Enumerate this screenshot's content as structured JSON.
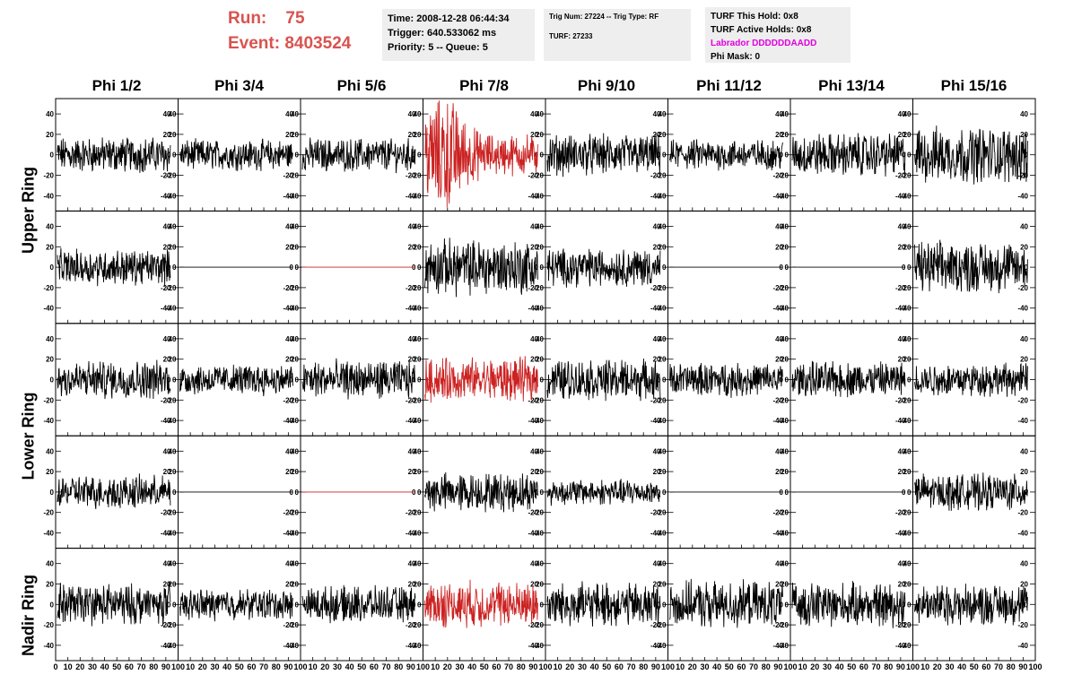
{
  "header": {
    "run_label": "Run:",
    "run_value": "75",
    "event_label": "Event:",
    "event_value": "8403524",
    "time_box": {
      "time": "Time: 2008-12-28 06:44:34",
      "trigger": "Trigger: 640.533062 ms",
      "priority": "Priority: 5 -- Queue: 5"
    },
    "trig_box": {
      "trig": "Trig Num: 27224 -- Trig Type: RF",
      "turf": "TURF: 27233"
    },
    "turf_box": {
      "this_hold": "TURF This Hold: 0x8",
      "active_holds": "TURF Active Holds: 0x8",
      "labrador": "Labrador DDDDDDAADD",
      "phi_mask": "Phi Mask: 0"
    }
  },
  "phi_headers": [
    "Phi 1/2",
    "Phi 3/4",
    "Phi 5/6",
    "Phi 7/8",
    "Phi 9/10",
    "Phi 11/12",
    "Phi 13/14",
    "Phi 15/16"
  ],
  "ring_labels": [
    "Upper Ring",
    "Lower Ring",
    "Nadir Ring"
  ],
  "colors": {
    "normal": "#000000",
    "trigger": "#cc2222",
    "accent": "#d9534f",
    "magenta": "#e000e0",
    "info_bg": "#eeeeee"
  },
  "chart_data": {
    "type": "line",
    "ylim": [
      -55,
      55
    ],
    "xlim": [
      0,
      100
    ],
    "yticks_left": [
      -40,
      -20,
      0,
      20,
      40
    ],
    "yticks_right": [
      -40,
      -20,
      0,
      20,
      40
    ],
    "xtick_labels": [
      "0",
      "10",
      "20",
      "30",
      "40",
      "50",
      "60",
      "70",
      "80",
      "90",
      "100"
    ],
    "rows": 5,
    "cols": 8,
    "panels": [
      [
        {
          "amp": 14,
          "color": "black"
        },
        {
          "amp": 12,
          "color": "black"
        },
        {
          "amp": 13,
          "color": "black"
        },
        {
          "amp": 25,
          "color": "red"
        },
        {
          "amp": 16,
          "color": "black"
        },
        {
          "amp": 12,
          "color": "black"
        },
        {
          "amp": 17,
          "color": "black"
        },
        {
          "amp": 22,
          "color": "black"
        }
      ],
      [
        {
          "amp": 14,
          "color": "black"
        },
        {
          "amp": 0,
          "color": "black"
        },
        {
          "amp": 0,
          "color": "red"
        },
        {
          "amp": 22,
          "color": "black"
        },
        {
          "amp": 15,
          "color": "black"
        },
        {
          "amp": 0,
          "color": "black"
        },
        {
          "amp": 0,
          "color": "black"
        },
        {
          "amp": 20,
          "color": "black"
        }
      ],
      [
        {
          "amp": 15,
          "color": "black"
        },
        {
          "amp": 12,
          "color": "black"
        },
        {
          "amp": 15,
          "color": "black"
        },
        {
          "amp": 17,
          "color": "red"
        },
        {
          "amp": 16,
          "color": "black"
        },
        {
          "amp": 13,
          "color": "black"
        },
        {
          "amp": 14,
          "color": "black"
        },
        {
          "amp": 13,
          "color": "black"
        }
      ],
      [
        {
          "amp": 13,
          "color": "black"
        },
        {
          "amp": 0,
          "color": "black"
        },
        {
          "amp": 0,
          "color": "red"
        },
        {
          "amp": 15,
          "color": "black"
        },
        {
          "amp": 10,
          "color": "black"
        },
        {
          "amp": 0,
          "color": "black"
        },
        {
          "amp": 0,
          "color": "black"
        },
        {
          "amp": 14,
          "color": "black"
        }
      ],
      [
        {
          "amp": 16,
          "color": "black"
        },
        {
          "amp": 12,
          "color": "black"
        },
        {
          "amp": 14,
          "color": "black"
        },
        {
          "amp": 18,
          "color": "red"
        },
        {
          "amp": 17,
          "color": "black"
        },
        {
          "amp": 18,
          "color": "black"
        },
        {
          "amp": 17,
          "color": "black"
        },
        {
          "amp": 16,
          "color": "black"
        }
      ]
    ]
  }
}
